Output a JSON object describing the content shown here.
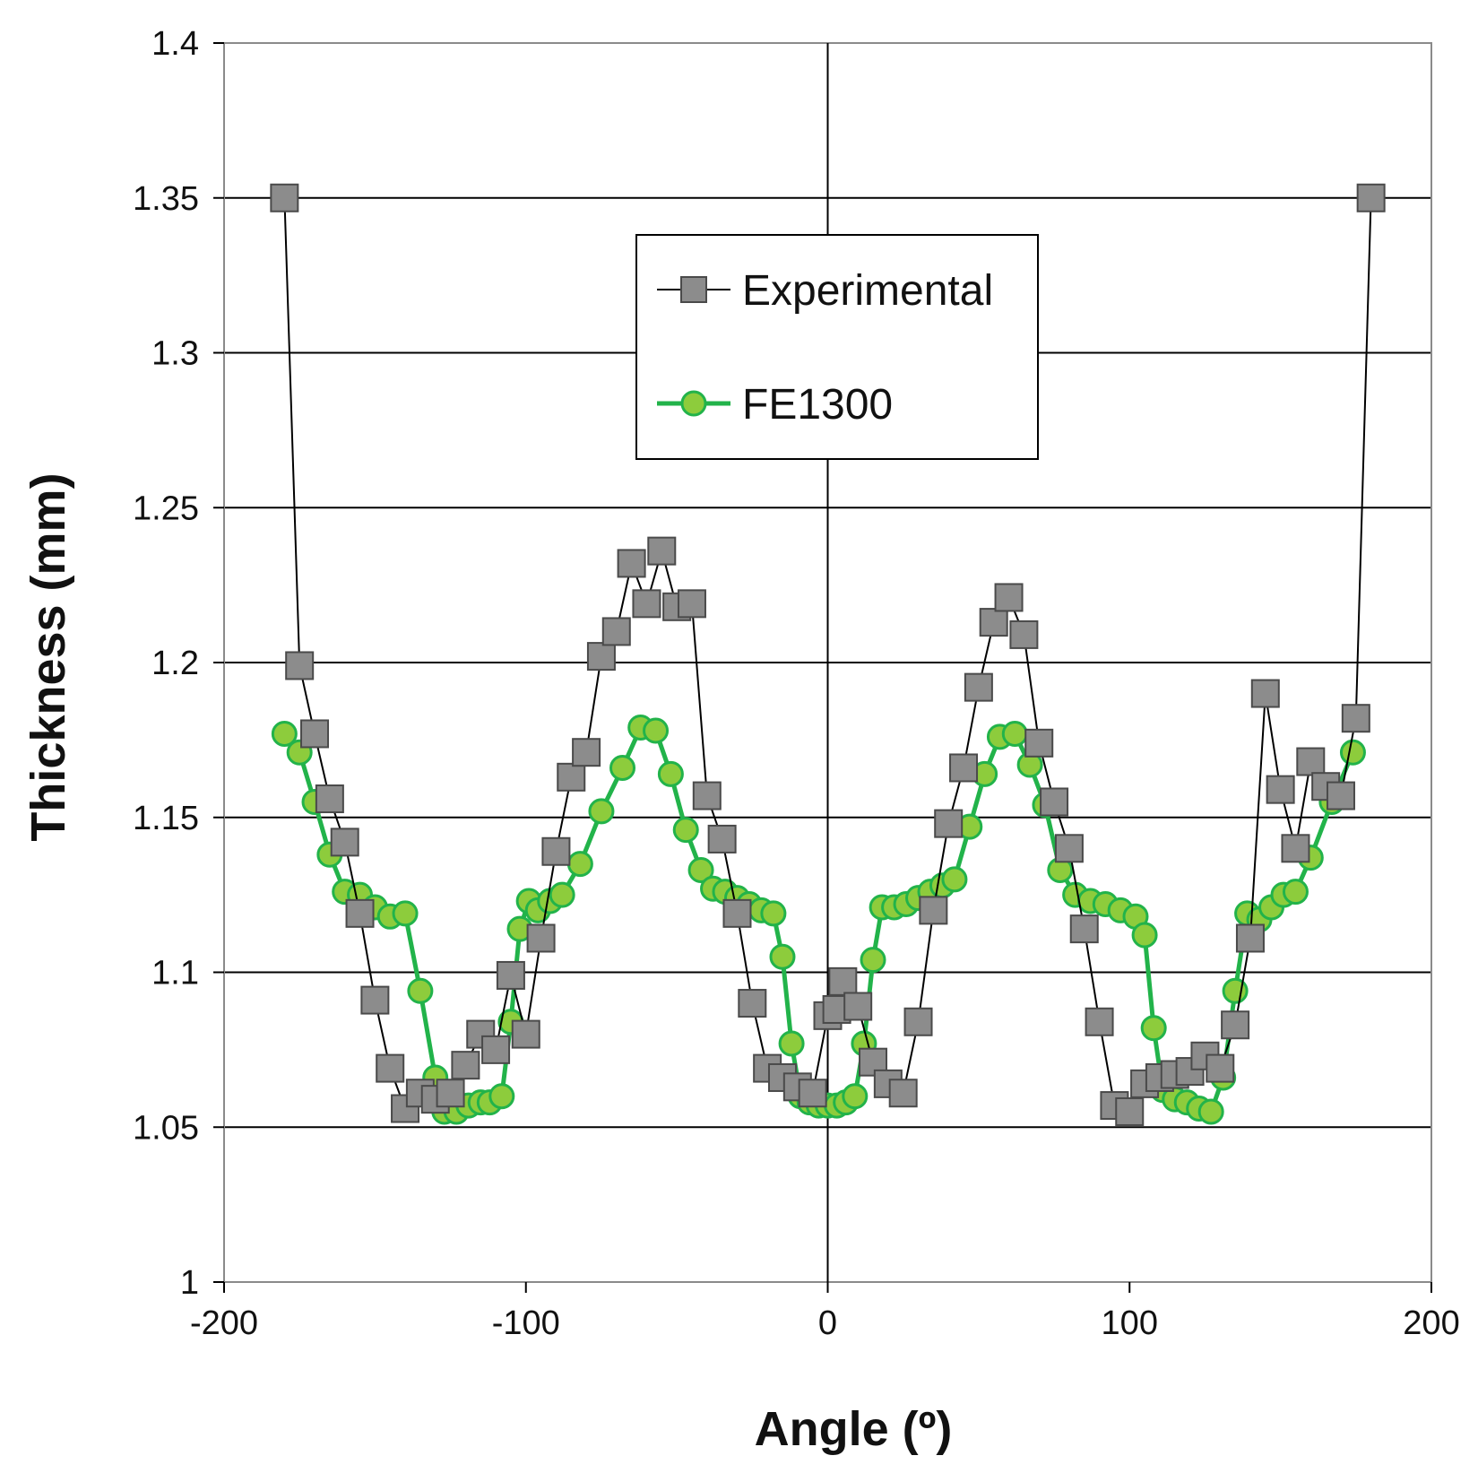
{
  "chart_data": {
    "type": "line",
    "title": "",
    "xlabel": "Angle (º)",
    "ylabel": "Thickness (mm)",
    "xlim": [
      -200,
      200
    ],
    "ylim": [
      1.0,
      1.4
    ],
    "x_ticks": [
      -200,
      -100,
      0,
      100,
      200
    ],
    "x_tick_labels": [
      "-200",
      "-100",
      "0",
      "100",
      "200"
    ],
    "y_ticks": [
      1.0,
      1.05,
      1.1,
      1.15,
      1.2,
      1.25,
      1.3,
      1.35,
      1.4
    ],
    "y_tick_labels": [
      "1",
      "1.05",
      "1.1",
      "1.15",
      "1.2",
      "1.25",
      "1.3",
      "1.35",
      "1.4"
    ],
    "grid": {
      "horizontal": true,
      "vertical": false
    },
    "legend": {
      "position": "top-center"
    },
    "series": [
      {
        "name": "Experimental",
        "color": "#000000",
        "marker": "square",
        "marker_fill": "#8c8c8c",
        "marker_stroke": "#4a4a4a",
        "points": [
          [
            -180,
            1.35
          ],
          [
            -175,
            1.199
          ],
          [
            -170,
            1.177
          ],
          [
            -165,
            1.156
          ],
          [
            -160,
            1.142
          ],
          [
            -155,
            1.119
          ],
          [
            -150,
            1.091
          ],
          [
            -145,
            1.069
          ],
          [
            -140,
            1.056
          ],
          [
            -135,
            1.061
          ],
          [
            -130,
            1.059
          ],
          [
            -125,
            1.061
          ],
          [
            -120,
            1.07
          ],
          [
            -115,
            1.08
          ],
          [
            -110,
            1.075
          ],
          [
            -105,
            1.099
          ],
          [
            -100,
            1.08
          ],
          [
            -95,
            1.111
          ],
          [
            -90,
            1.139
          ],
          [
            -85,
            1.163
          ],
          [
            -80,
            1.171
          ],
          [
            -75,
            1.202
          ],
          [
            -70,
            1.21
          ],
          [
            -65,
            1.232
          ],
          [
            -60,
            1.219
          ],
          [
            -55,
            1.236
          ],
          [
            -50,
            1.218
          ],
          [
            -45,
            1.219
          ],
          [
            -40,
            1.157
          ],
          [
            -35,
            1.143
          ],
          [
            -30,
            1.119
          ],
          [
            -25,
            1.09
          ],
          [
            -20,
            1.069
          ],
          [
            -15,
            1.066
          ],
          [
            -10,
            1.063
          ],
          [
            -5,
            1.061
          ],
          [
            0,
            1.086
          ],
          [
            3,
            1.088
          ],
          [
            5,
            1.097
          ],
          [
            10,
            1.089
          ],
          [
            15,
            1.071
          ],
          [
            20,
            1.064
          ],
          [
            25,
            1.061
          ],
          [
            30,
            1.084
          ],
          [
            35,
            1.12
          ],
          [
            40,
            1.148
          ],
          [
            45,
            1.166
          ],
          [
            50,
            1.192
          ],
          [
            55,
            1.213
          ],
          [
            60,
            1.221
          ],
          [
            65,
            1.209
          ],
          [
            70,
            1.174
          ],
          [
            75,
            1.155
          ],
          [
            80,
            1.14
          ],
          [
            85,
            1.114
          ],
          [
            90,
            1.084
          ],
          [
            95,
            1.057
          ],
          [
            100,
            1.055
          ],
          [
            105,
            1.064
          ],
          [
            110,
            1.066
          ],
          [
            115,
            1.067
          ],
          [
            120,
            1.068
          ],
          [
            125,
            1.073
          ],
          [
            130,
            1.069
          ],
          [
            135,
            1.083
          ],
          [
            140,
            1.111
          ],
          [
            145,
            1.19
          ],
          [
            150,
            1.159
          ],
          [
            155,
            1.14
          ],
          [
            160,
            1.168
          ],
          [
            165,
            1.16
          ],
          [
            170,
            1.157
          ],
          [
            175,
            1.182
          ],
          [
            180,
            1.35
          ]
        ]
      },
      {
        "name": "FE1300",
        "color": "#22b34a",
        "marker": "circle",
        "marker_fill": "#8dcc3c",
        "marker_stroke": "#22b34a",
        "points": [
          [
            -180,
            1.177
          ],
          [
            -175,
            1.171
          ],
          [
            -170,
            1.155
          ],
          [
            -165,
            1.138
          ],
          [
            -160,
            1.126
          ],
          [
            -155,
            1.125
          ],
          [
            -150,
            1.121
          ],
          [
            -145,
            1.118
          ],
          [
            -140,
            1.119
          ],
          [
            -135,
            1.094
          ],
          [
            -130,
            1.066
          ],
          [
            -127,
            1.055
          ],
          [
            -123,
            1.055
          ],
          [
            -119,
            1.057
          ],
          [
            -115,
            1.058
          ],
          [
            -112,
            1.058
          ],
          [
            -108,
            1.06
          ],
          [
            -105,
            1.084
          ],
          [
            -102,
            1.114
          ],
          [
            -99,
            1.123
          ],
          [
            -96,
            1.12
          ],
          [
            -92,
            1.123
          ],
          [
            -88,
            1.125
          ],
          [
            -82,
            1.135
          ],
          [
            -75,
            1.152
          ],
          [
            -68,
            1.166
          ],
          [
            -62,
            1.179
          ],
          [
            -57,
            1.178
          ],
          [
            -52,
            1.164
          ],
          [
            -47,
            1.146
          ],
          [
            -42,
            1.133
          ],
          [
            -38,
            1.127
          ],
          [
            -34,
            1.126
          ],
          [
            -30,
            1.124
          ],
          [
            -26,
            1.122
          ],
          [
            -22,
            1.12
          ],
          [
            -18,
            1.119
          ],
          [
            -15,
            1.105
          ],
          [
            -12,
            1.077
          ],
          [
            -9,
            1.06
          ],
          [
            -6,
            1.058
          ],
          [
            -3,
            1.057
          ],
          [
            0,
            1.057
          ],
          [
            3,
            1.057
          ],
          [
            6,
            1.058
          ],
          [
            9,
            1.06
          ],
          [
            12,
            1.077
          ],
          [
            15,
            1.104
          ],
          [
            18,
            1.121
          ],
          [
            22,
            1.121
          ],
          [
            26,
            1.122
          ],
          [
            30,
            1.124
          ],
          [
            34,
            1.126
          ],
          [
            38,
            1.128
          ],
          [
            42,
            1.13
          ],
          [
            47,
            1.147
          ],
          [
            52,
            1.164
          ],
          [
            57,
            1.176
          ],
          [
            62,
            1.177
          ],
          [
            67,
            1.167
          ],
          [
            72,
            1.154
          ],
          [
            77,
            1.133
          ],
          [
            82,
            1.125
          ],
          [
            87,
            1.123
          ],
          [
            92,
            1.122
          ],
          [
            97,
            1.12
          ],
          [
            102,
            1.118
          ],
          [
            105,
            1.112
          ],
          [
            108,
            1.082
          ],
          [
            111,
            1.062
          ],
          [
            115,
            1.059
          ],
          [
            119,
            1.058
          ],
          [
            123,
            1.056
          ],
          [
            127,
            1.055
          ],
          [
            131,
            1.066
          ],
          [
            135,
            1.094
          ],
          [
            139,
            1.119
          ],
          [
            143,
            1.117
          ],
          [
            147,
            1.121
          ],
          [
            151,
            1.125
          ],
          [
            155,
            1.126
          ],
          [
            160,
            1.137
          ],
          [
            167,
            1.155
          ],
          [
            174,
            1.171
          ]
        ]
      }
    ]
  }
}
